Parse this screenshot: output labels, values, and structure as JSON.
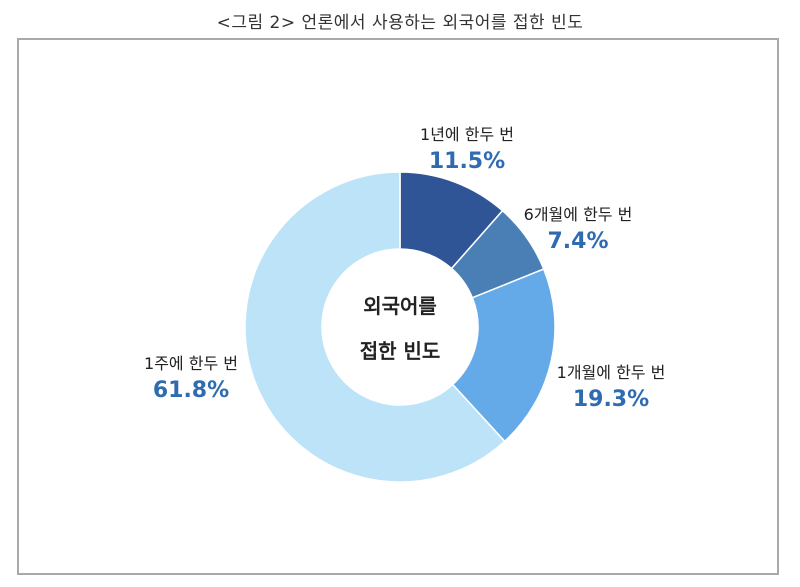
{
  "caption": "<그림 2> 언론에서 사용하는 외국어를 접한 빈도",
  "chart_data": {
    "type": "pie",
    "donut": true,
    "title": "<그림 2> 언론에서 사용하는 외국어를 접한 빈도",
    "center_label": [
      "외국어를",
      "접한 빈도"
    ],
    "slices": [
      {
        "label": "1년에 한두 번",
        "value": 11.5,
        "value_label": "11.5%",
        "color": "#2f5597"
      },
      {
        "label": "6개월에 한두 번",
        "value": 7.4,
        "value_label": "7.4%",
        "color": "#4a7fb5"
      },
      {
        "label": "1개월에 한두 번",
        "value": 19.3,
        "value_label": "19.3%",
        "color": "#64a9e8"
      },
      {
        "label": "1주에 한두 번",
        "value": 61.8,
        "value_label": "61.8%",
        "color": "#bde3f8"
      }
    ],
    "value_label_color": "#2e6bb0",
    "start_angle": "12 o'clock",
    "direction": "clockwise"
  }
}
